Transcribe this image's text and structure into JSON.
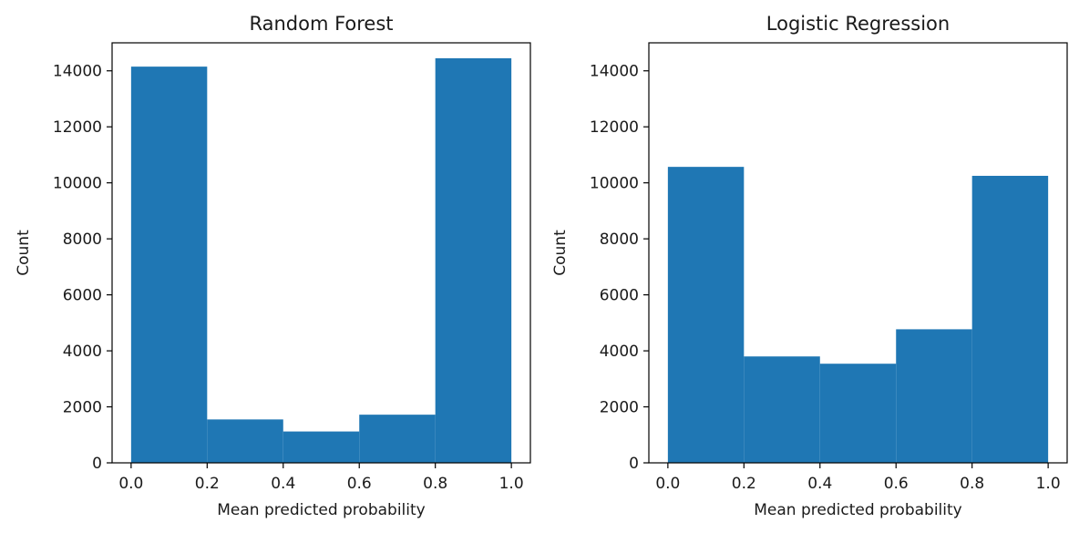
{
  "chart_data": [
    {
      "type": "bar",
      "title": "Random Forest",
      "xlabel": "Mean predicted probability",
      "ylabel": "Count",
      "bin_edges": [
        0.0,
        0.2,
        0.4,
        0.6,
        0.8,
        1.0
      ],
      "values": [
        14150,
        1550,
        1120,
        1720,
        14450
      ],
      "xlim": [
        -0.05,
        1.05
      ],
      "ylim": [
        0,
        15000
      ],
      "xticks": [
        "0.0",
        "0.2",
        "0.4",
        "0.6",
        "0.8",
        "1.0"
      ],
      "yticks": [
        "0",
        "2000",
        "4000",
        "6000",
        "8000",
        "10000",
        "12000",
        "14000"
      ],
      "color": "#1f77b4",
      "grid": false
    },
    {
      "type": "bar",
      "title": "Logistic Regression",
      "xlabel": "Mean predicted probability",
      "ylabel": "Count",
      "bin_edges": [
        0.0,
        0.2,
        0.4,
        0.6,
        0.8,
        1.0
      ],
      "values": [
        10570,
        3800,
        3540,
        4770,
        10250
      ],
      "xlim": [
        -0.05,
        1.05
      ],
      "ylim": [
        0,
        15000
      ],
      "xticks": [
        "0.0",
        "0.2",
        "0.4",
        "0.6",
        "0.8",
        "1.0"
      ],
      "yticks": [
        "0",
        "2000",
        "4000",
        "6000",
        "8000",
        "10000",
        "12000",
        "14000"
      ],
      "color": "#1f77b4",
      "grid": false
    }
  ]
}
